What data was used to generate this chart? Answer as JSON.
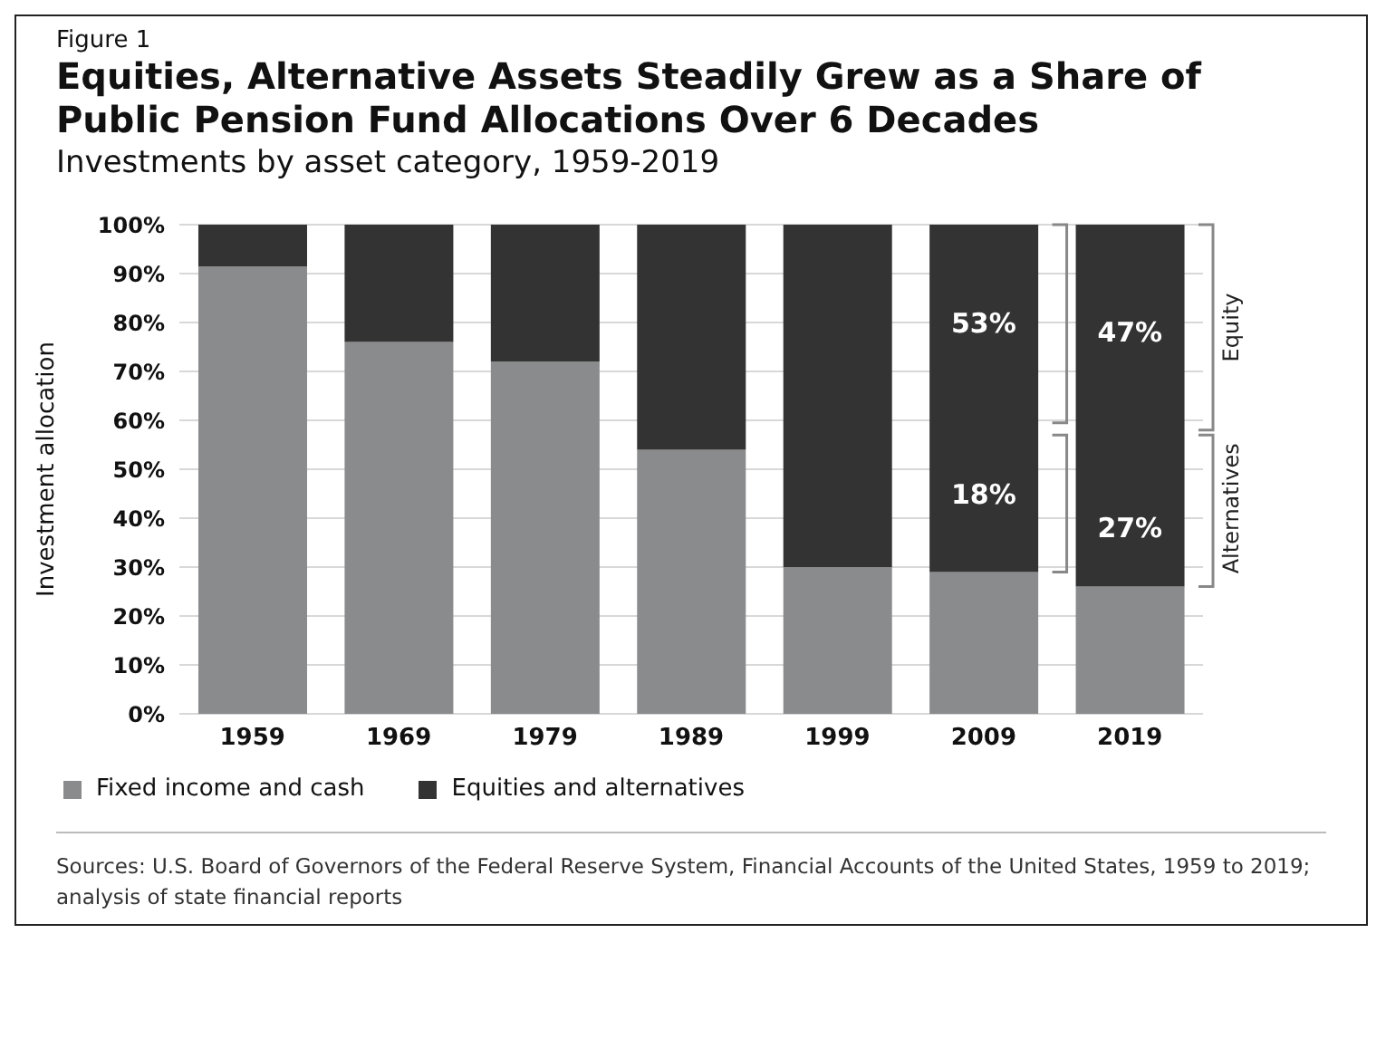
{
  "chart_data": {
    "type": "bar",
    "title": "Equities, Alternative Assets Steadily Grew as a Share of Public Pension Fund Allocations Over 6 Decades",
    "subtitle": "Investments by asset category, 1959-2019",
    "ylabel": "Investment allocation",
    "categories": [
      "1959",
      "1969",
      "1979",
      "1989",
      "1999",
      "2009",
      "2019"
    ],
    "series": [
      {
        "name": "Fixed income and cash",
        "color": "#8a8b8d",
        "values": [
          91.5,
          76,
          72,
          54,
          30,
          29,
          26
        ]
      },
      {
        "name": "Equities and alternatives",
        "color": "#333333",
        "values": [
          8.5,
          24,
          28,
          46,
          70,
          71,
          74
        ]
      }
    ],
    "stacked": true,
    "ylim": [
      0,
      100
    ],
    "yticks": [
      {
        "value": 0,
        "label": "0%"
      },
      {
        "value": 10,
        "label": "10%"
      },
      {
        "value": 20,
        "label": "20%"
      },
      {
        "value": 30,
        "label": "30%"
      },
      {
        "value": 40,
        "label": "40%"
      },
      {
        "value": 50,
        "label": "50%"
      },
      {
        "value": 60,
        "label": "60%"
      },
      {
        "value": 70,
        "label": "70%"
      },
      {
        "value": 80,
        "label": "80%"
      },
      {
        "value": 90,
        "label": "90%"
      },
      {
        "value": 100,
        "label": "100%"
      }
    ],
    "grid": "y",
    "legend": "bottom left",
    "annotations": [
      "Figure 1",
      "Sources: U.S. Board of Governors of the Federal Reserve System, Financial Accounts of the United States, 1959 to 2019; analysis of state financial reports",
      "53%",
      "18%",
      "47%",
      "27%",
      "Equity",
      "Alternatives"
    ]
  }
}
